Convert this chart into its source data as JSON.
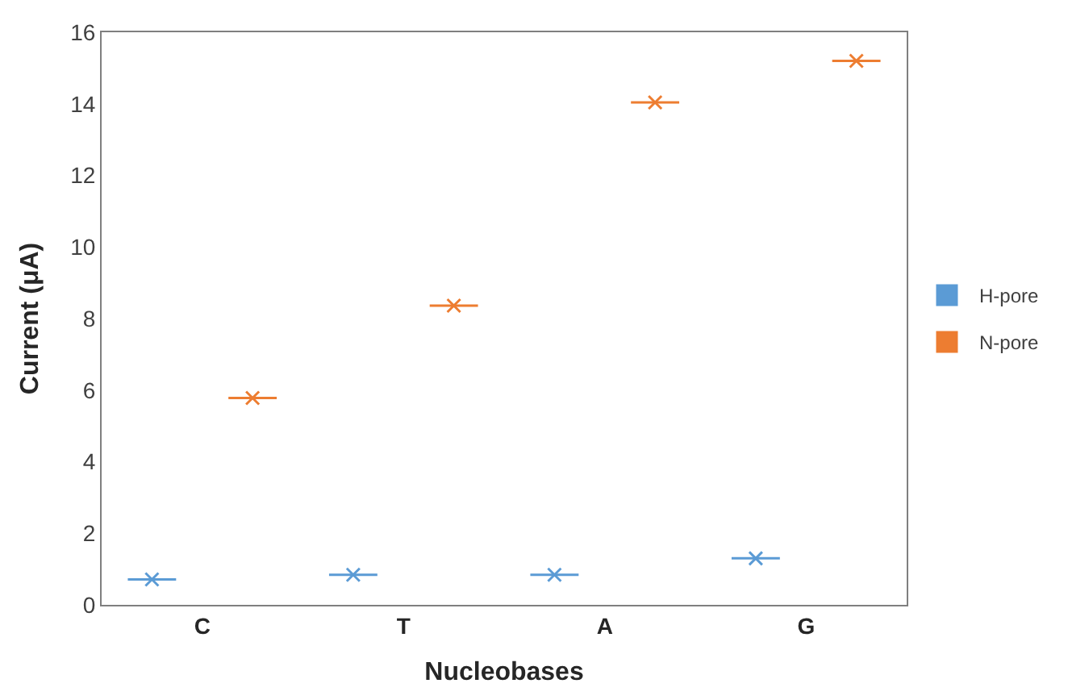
{
  "chart_data": {
    "type": "box",
    "categories": [
      "C",
      "T",
      "A",
      "G"
    ],
    "xlabel": "Nucleobases",
    "ylabel": "Current (μA)",
    "ylim": [
      0,
      16
    ],
    "yticks": [
      0,
      2,
      4,
      6,
      8,
      10,
      12,
      14,
      16
    ],
    "legend": "right",
    "marker": "cross",
    "series": [
      {
        "name": "H-pore",
        "color": "#5b9bd5",
        "boxes": [
          {
            "low": 0.71,
            "q1": 0.71,
            "median": 0.71,
            "q3": 0.71,
            "high": 0.71,
            "mean": 0.71
          },
          {
            "low": 0.84,
            "q1": 0.84,
            "median": 0.84,
            "q3": 0.84,
            "high": 0.84,
            "mean": 0.84
          },
          {
            "low": 0.84,
            "q1": 0.84,
            "median": 0.84,
            "q3": 0.84,
            "high": 0.84,
            "mean": 0.84
          },
          {
            "low": 1.3,
            "q1": 1.3,
            "median": 1.3,
            "q3": 1.3,
            "high": 1.3,
            "mean": 1.3
          }
        ]
      },
      {
        "name": "N-pore",
        "color": "#ed7d31",
        "boxes": [
          {
            "low": 5.78,
            "q1": 5.78,
            "median": 5.78,
            "q3": 5.78,
            "high": 5.78,
            "mean": 5.78
          },
          {
            "low": 8.36,
            "q1": 8.36,
            "median": 8.36,
            "q3": 8.36,
            "high": 8.36,
            "mean": 8.36
          },
          {
            "low": 14.04,
            "q1": 14.04,
            "median": 14.04,
            "q3": 14.04,
            "high": 14.04,
            "mean": 14.04
          },
          {
            "low": 15.2,
            "q1": 15.2,
            "median": 15.2,
            "q3": 15.2,
            "high": 15.2,
            "mean": 15.2
          }
        ]
      }
    ]
  }
}
